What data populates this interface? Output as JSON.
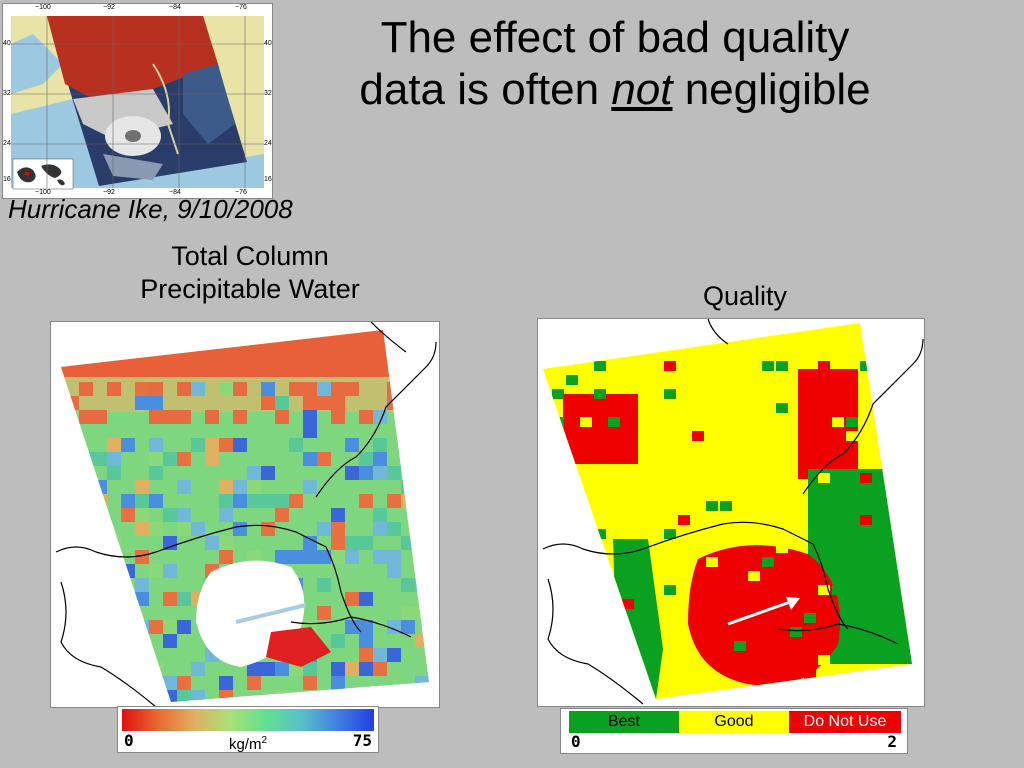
{
  "slide": {
    "title_line1": "The effect of bad quality",
    "title_line2_prefix": "data is often ",
    "title_emphasis": "not",
    "title_line2_suffix": " negligible",
    "caption": "Hurricane Ike, 9/10/2008",
    "label_left_line1": "Total Column",
    "label_left_line2": "Precipitable Water",
    "label_right": "Quality"
  },
  "thumbnail": {
    "top_ticks": [
      "−100",
      "−92",
      "−84",
      "−76"
    ],
    "bottom_ticks": [
      "−100",
      "−92",
      "−84",
      "−76"
    ],
    "left_ticks": [
      "40",
      "32",
      "24",
      "16"
    ],
    "right_ticks": [
      "40",
      "32",
      "24",
      "16"
    ]
  },
  "tcpw_colorbar": {
    "min_label": "0",
    "max_label": "75",
    "unit_prefix": "kg/m",
    "unit_sup": "2"
  },
  "quality_colorbar": {
    "best_label": "Best",
    "good_label": "Good",
    "bad_label": "Do Not Use",
    "min_label": "0",
    "max_label": "2"
  },
  "colors": {
    "quality_best": "#0aa020",
    "quality_good": "#ffff00",
    "quality_bad": "#ee0000",
    "background": "#bdbdbd"
  }
}
